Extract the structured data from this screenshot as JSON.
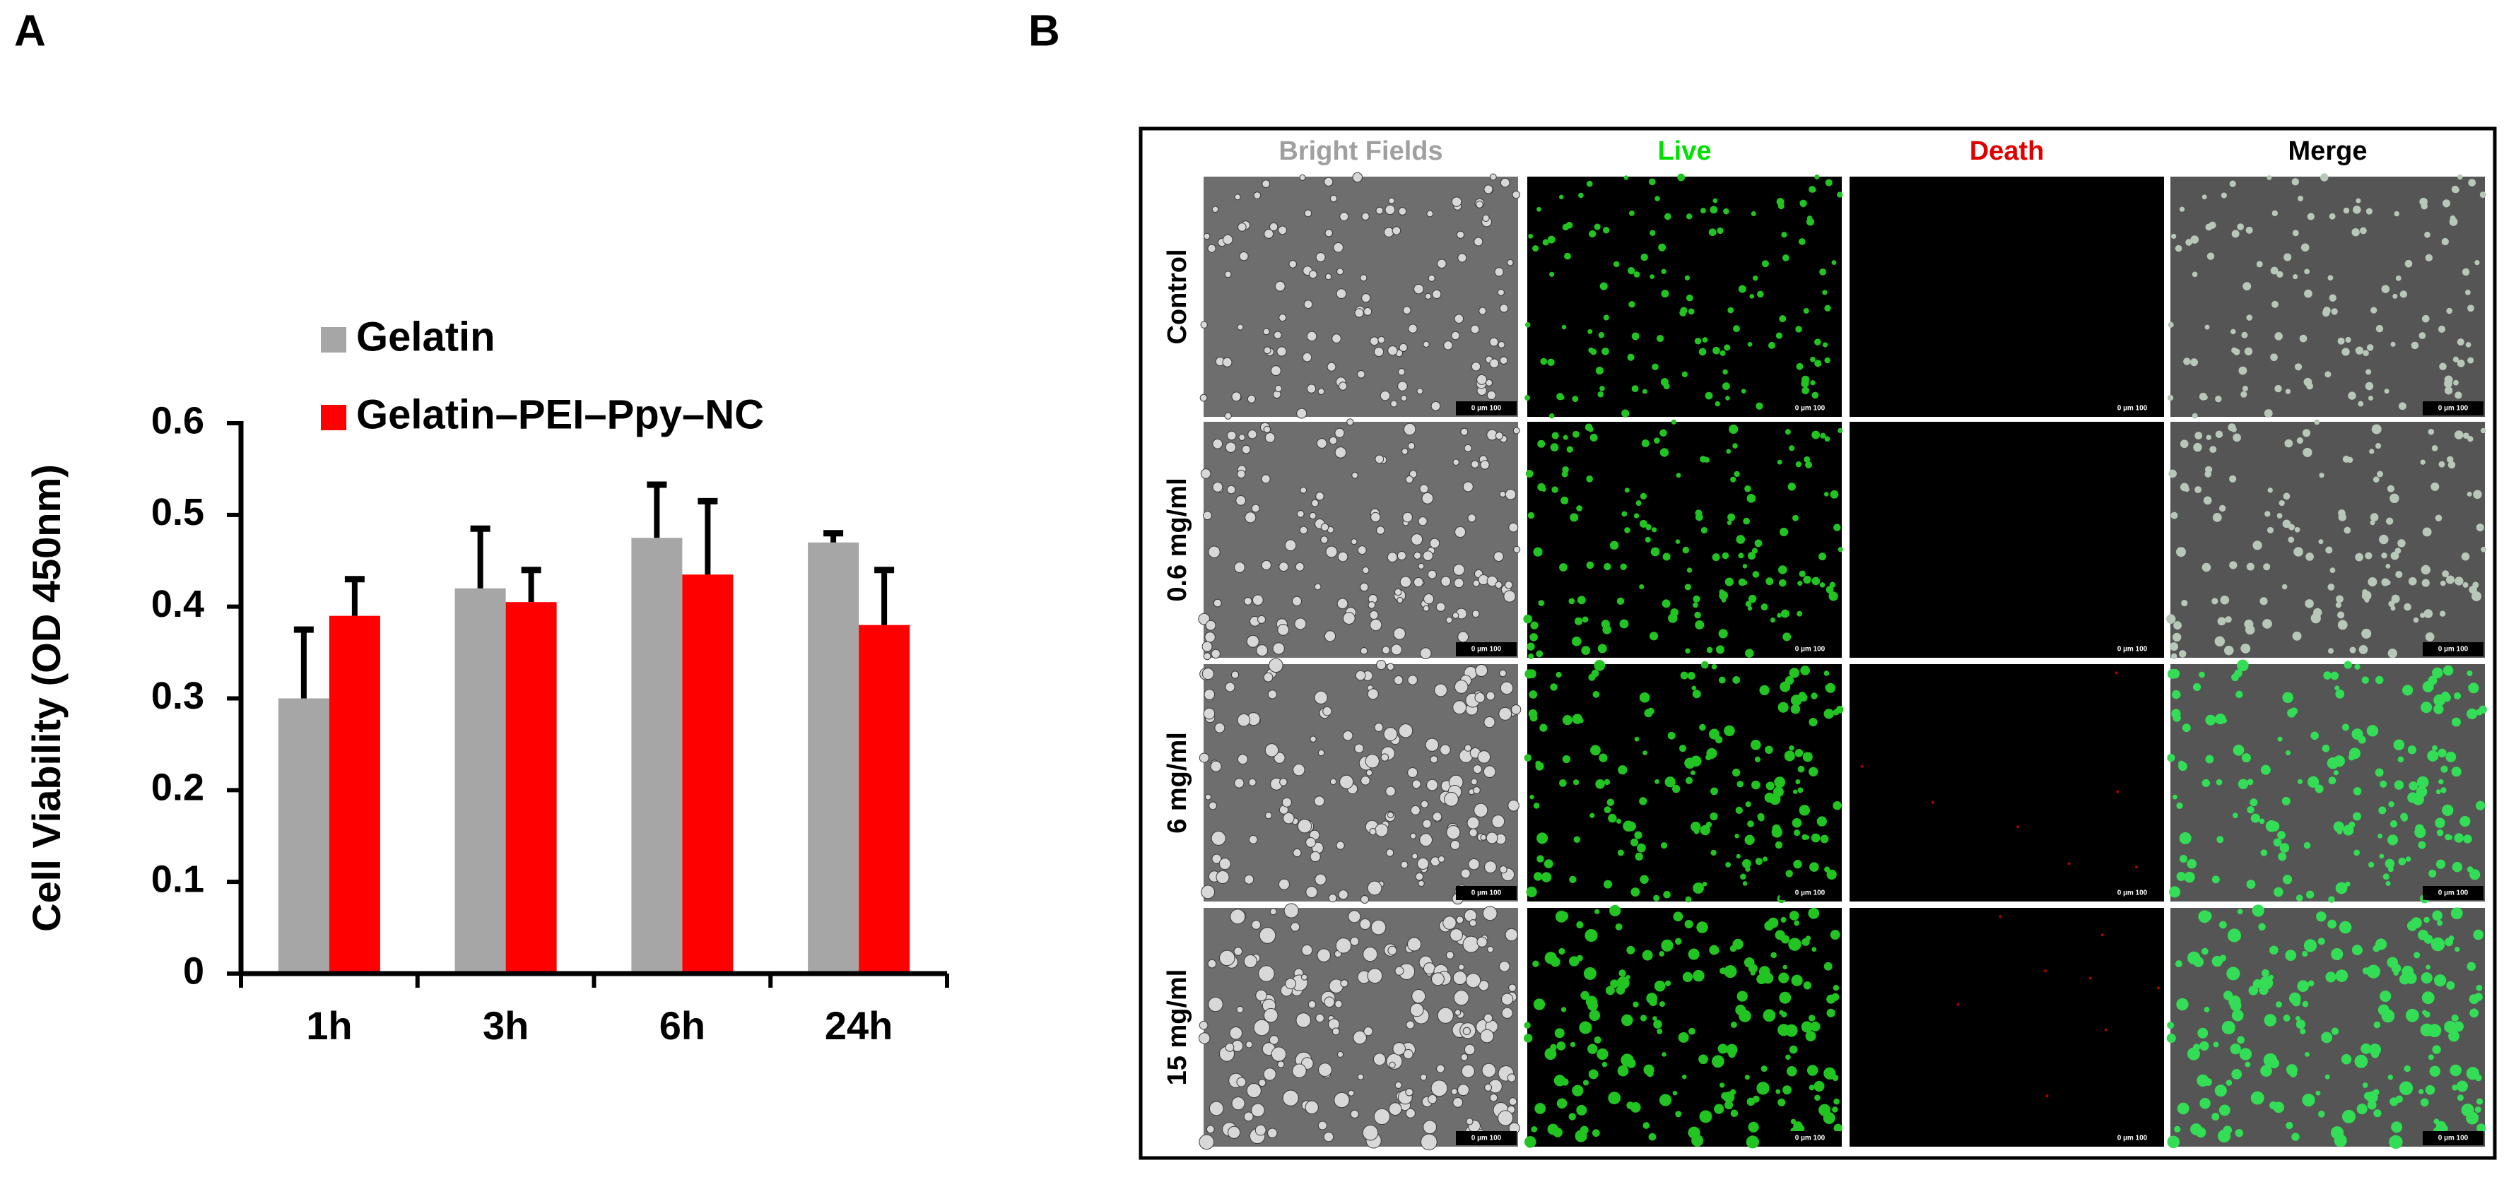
{
  "figure_a": {
    "label": "A"
  },
  "chart_data": {
    "type": "bar",
    "y_label": "Cell Viability (OD 450nm)",
    "categories": [
      "1h",
      "3h",
      "6h",
      "24h"
    ],
    "series": [
      {
        "name": "Gelatin",
        "color": "#a6a6a6",
        "values": [
          0.3,
          0.42,
          0.475,
          0.47
        ],
        "errors": [
          0.075,
          0.065,
          0.058,
          0.01
        ]
      },
      {
        "name": "Gelatin–PEI–Ppy–NC",
        "color": "#ff0000",
        "values": [
          0.39,
          0.405,
          0.435,
          0.38
        ],
        "errors": [
          0.04,
          0.035,
          0.08,
          0.06
        ]
      }
    ],
    "ylim": [
      0,
      0.6
    ],
    "yticks": [
      0,
      0.1,
      0.2,
      0.3,
      0.4,
      0.5,
      0.6
    ],
    "grid": false,
    "legend": "top-left"
  },
  "figure_b": {
    "label": "B",
    "columns": [
      "Bright Fields",
      "Live",
      "Death",
      "Merge"
    ],
    "rows": [
      "Control",
      "0.6 mg/ml",
      "6 mg/ml",
      "15 mg/ml"
    ],
    "scale_bar": "0 µm 100"
  }
}
